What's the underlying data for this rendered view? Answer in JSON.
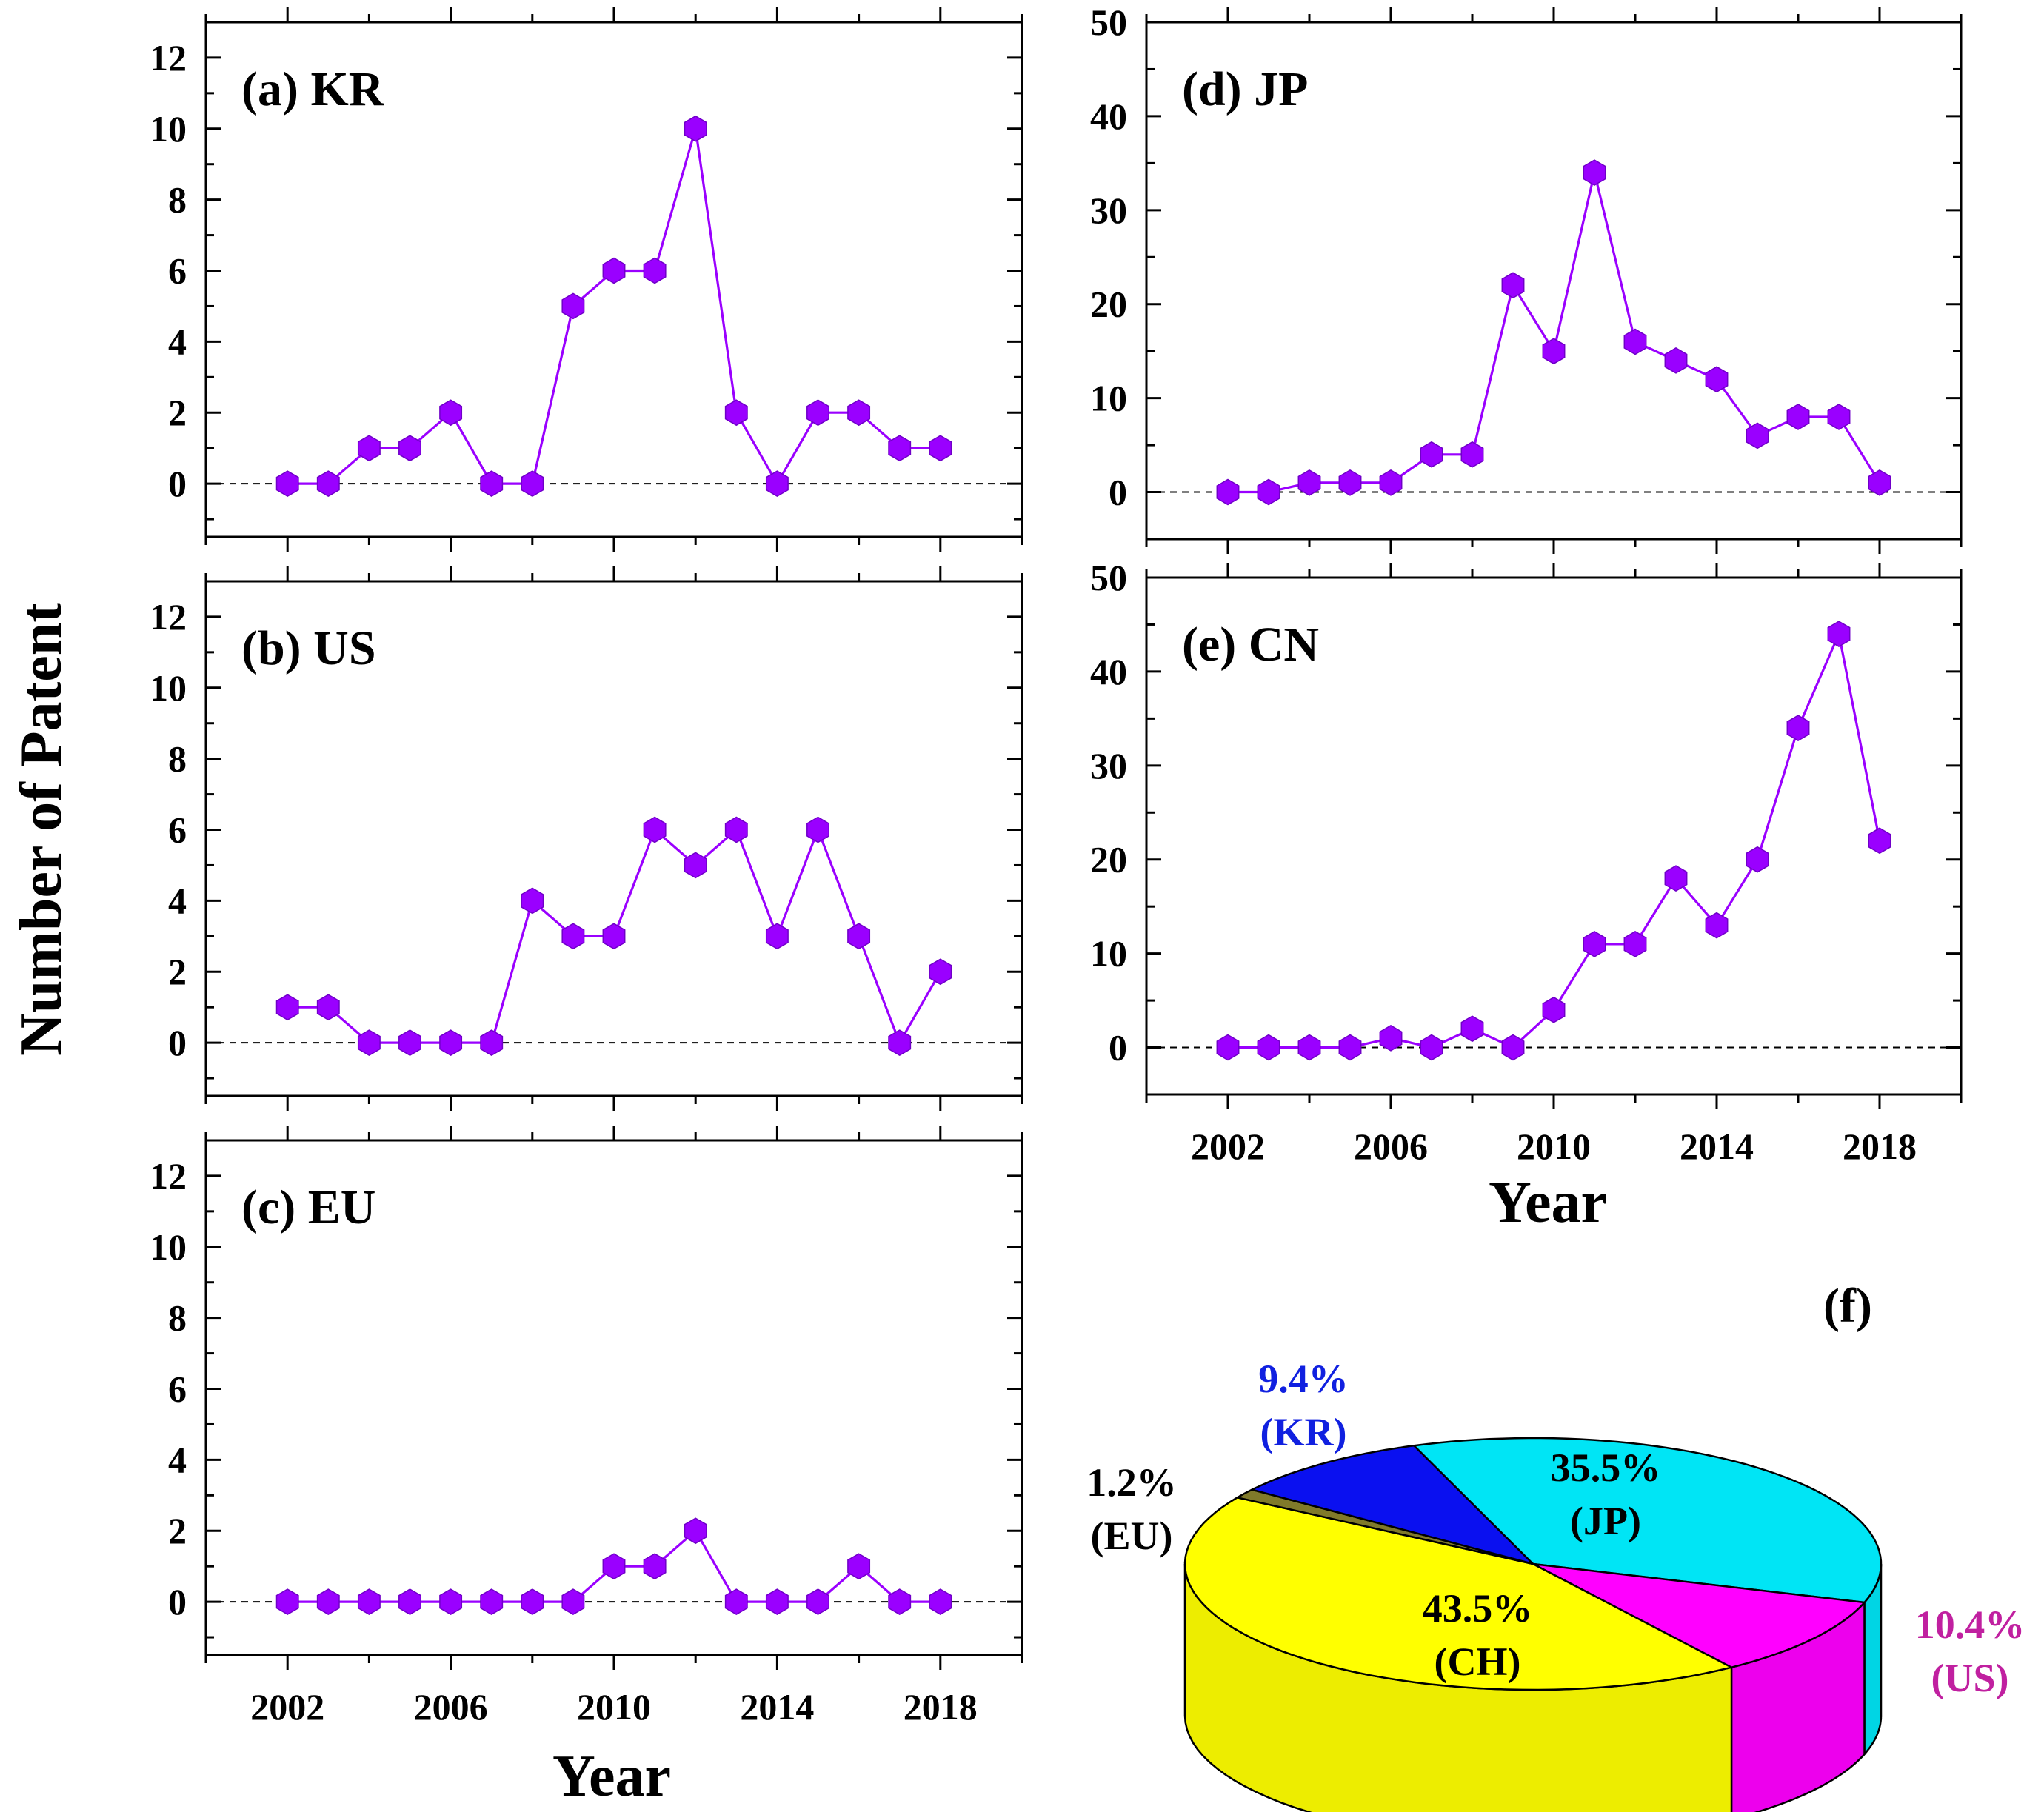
{
  "figure": {
    "ylabel": "Number of Patent",
    "xlabel_left": "Year",
    "xlabel_right": "Year"
  },
  "chart_data": [
    {
      "panel": "a",
      "type": "line",
      "title": "(a) KR",
      "color": "#9a00ff",
      "x": [
        2002,
        2003,
        2004,
        2005,
        2006,
        2007,
        2008,
        2009,
        2010,
        2011,
        2012,
        2013,
        2014,
        2015,
        2016,
        2017,
        2018
      ],
      "y": [
        0,
        0,
        1,
        1,
        2,
        0,
        0,
        5,
        6,
        6,
        10,
        2,
        0,
        2,
        2,
        1,
        1
      ],
      "xlim": [
        2000,
        2020
      ],
      "ylim": [
        -1.5,
        13
      ],
      "yticks": [
        0,
        2,
        4,
        6,
        8,
        10,
        12
      ],
      "xticks": [
        2002,
        2006,
        2010,
        2014,
        2018
      ],
      "xlabel": "",
      "ylabel": ""
    },
    {
      "panel": "b",
      "type": "line",
      "title": "(b) US",
      "color": "#9a00ff",
      "x": [
        2002,
        2003,
        2004,
        2005,
        2006,
        2007,
        2008,
        2009,
        2010,
        2011,
        2012,
        2013,
        2014,
        2015,
        2016,
        2017,
        2018
      ],
      "y": [
        1,
        1,
        0,
        0,
        0,
        0,
        4,
        3,
        3,
        6,
        5,
        6,
        3,
        6,
        3,
        0,
        2
      ],
      "xlim": [
        2000,
        2020
      ],
      "ylim": [
        -1.5,
        13
      ],
      "yticks": [
        0,
        2,
        4,
        6,
        8,
        10,
        12
      ],
      "xticks": [
        2002,
        2006,
        2010,
        2014,
        2018
      ],
      "xlabel": "",
      "ylabel": ""
    },
    {
      "panel": "c",
      "type": "line",
      "title": "(c) EU",
      "color": "#9a00ff",
      "x": [
        2002,
        2003,
        2004,
        2005,
        2006,
        2007,
        2008,
        2009,
        2010,
        2011,
        2012,
        2013,
        2014,
        2015,
        2016,
        2017,
        2018
      ],
      "y": [
        0,
        0,
        0,
        0,
        0,
        0,
        0,
        0,
        1,
        1,
        2,
        0,
        0,
        0,
        1,
        0,
        0
      ],
      "xlim": [
        2000,
        2020
      ],
      "ylim": [
        -1.5,
        13
      ],
      "yticks": [
        0,
        2,
        4,
        6,
        8,
        10,
        12
      ],
      "xticks": [
        2002,
        2006,
        2010,
        2014,
        2018
      ],
      "xlabel": "Year",
      "ylabel": ""
    },
    {
      "panel": "d",
      "type": "line",
      "title": "(d) JP",
      "color": "#9a00ff",
      "x": [
        2002,
        2003,
        2004,
        2005,
        2006,
        2007,
        2008,
        2009,
        2010,
        2011,
        2012,
        2013,
        2014,
        2015,
        2016,
        2017,
        2018
      ],
      "y": [
        0,
        0,
        1,
        1,
        1,
        4,
        4,
        22,
        15,
        34,
        16,
        14,
        12,
        6,
        8,
        8,
        1
      ],
      "xlim": [
        2000,
        2020
      ],
      "ylim": [
        -5,
        50
      ],
      "yticks": [
        0,
        10,
        20,
        30,
        40,
        50
      ],
      "xticks": [
        2002,
        2006,
        2010,
        2014,
        2018
      ],
      "xlabel": "",
      "ylabel": ""
    },
    {
      "panel": "e",
      "type": "line",
      "title": "(e) CN",
      "color": "#9a00ff",
      "x": [
        2002,
        2003,
        2004,
        2005,
        2006,
        2007,
        2008,
        2009,
        2010,
        2011,
        2012,
        2013,
        2014,
        2015,
        2016,
        2017,
        2018
      ],
      "y": [
        0,
        0,
        0,
        0,
        1,
        0,
        2,
        0,
        4,
        11,
        11,
        18,
        13,
        20,
        34,
        44,
        22
      ],
      "xlim": [
        2000,
        2020
      ],
      "ylim": [
        -5,
        50
      ],
      "yticks": [
        0,
        10,
        20,
        30,
        40,
        50
      ],
      "xticks": [
        2002,
        2006,
        2010,
        2014,
        2018
      ],
      "xlabel": "Year",
      "ylabel": ""
    },
    {
      "panel": "f",
      "type": "pie",
      "title": "(f)",
      "slices": [
        {
          "pct_label": "35.5%",
          "code_label": "(JP)",
          "value": 35.5,
          "color": "#00e5f5",
          "label_color": "#000000"
        },
        {
          "pct_label": "10.4%",
          "code_label": "(US)",
          "value": 10.4,
          "color": "#ff00ff",
          "label_color": "#c020a0"
        },
        {
          "pct_label": "43.5%",
          "code_label": "(CH)",
          "value": 43.5,
          "color": "#ffff00",
          "label_color": "#000000"
        },
        {
          "pct_label": "1.2%",
          "code_label": "(EU)",
          "value": 1.2,
          "color": "#807a2a",
          "label_color": "#000000"
        },
        {
          "pct_label": "9.4%",
          "code_label": "(KR)",
          "value": 9.4,
          "color": "#0a10f0",
          "label_color": "#1020e0"
        }
      ]
    }
  ]
}
